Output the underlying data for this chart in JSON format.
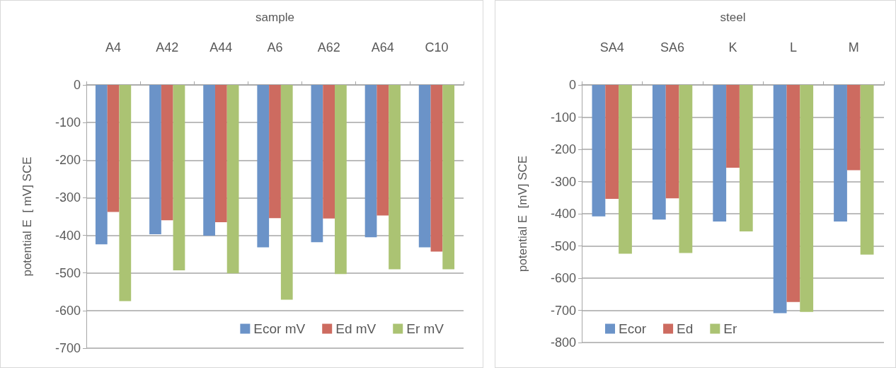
{
  "chart_data": [
    {
      "type": "bar",
      "xlabel": "sample",
      "ylabel": "potential E  [ mV] SCE",
      "categories": [
        "A4",
        "A42",
        "A44",
        "A6",
        "A62",
        "A64",
        "C10"
      ],
      "series": [
        {
          "name": "Ecor mV",
          "color": "#6b93c8",
          "values": [
            -424,
            -397,
            -401,
            -432,
            -418,
            -405,
            -432
          ]
        },
        {
          "name": "Ed mV",
          "color": "#cd6b60",
          "values": [
            -338,
            -360,
            -365,
            -354,
            -355,
            -347,
            -443
          ]
        },
        {
          "name": "Er mV",
          "color": "#abc373",
          "values": [
            -575,
            -493,
            -501,
            -571,
            -503,
            -490,
            -490
          ]
        }
      ],
      "ylim": [
        -700,
        0
      ],
      "yticks": [
        0,
        -100,
        -200,
        -300,
        -400,
        -500,
        -600,
        -700
      ],
      "grid": "y",
      "legend": "bottom right"
    },
    {
      "type": "bar",
      "xlabel": "steel",
      "ylabel": "potential E  [mV] SCE",
      "categories": [
        "SA4",
        "SA6",
        "K",
        "L",
        "M"
      ],
      "series": [
        {
          "name": "Ecor",
          "color": "#6b93c8",
          "values": [
            -408,
            -418,
            -424,
            -709,
            -424
          ]
        },
        {
          "name": "Ed",
          "color": "#cd6b60",
          "values": [
            -354,
            -352,
            -257,
            -674,
            -265
          ]
        },
        {
          "name": "Er",
          "color": "#abc373",
          "values": [
            -524,
            -522,
            -455,
            -705,
            -527
          ]
        }
      ],
      "ylim": [
        -800,
        0
      ],
      "yticks": [
        0,
        -100,
        -200,
        -300,
        -400,
        -500,
        -600,
        -700,
        -800
      ],
      "grid": "y",
      "legend": "bottom left"
    }
  ]
}
